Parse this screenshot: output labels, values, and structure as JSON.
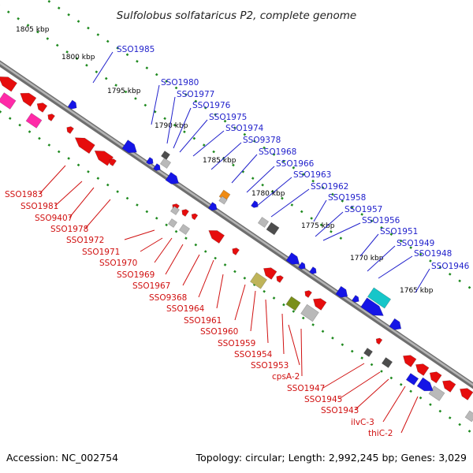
{
  "title": "Sulfolobus solfataricus P2, complete genome",
  "accession": "Accession: NC_002754",
  "topology": "Topology: circular; Length: 2,992,245 bp; Genes: 3,029",
  "colors": {
    "backbone": "#8a8a8a",
    "dots": "#1f8a1f",
    "forward_gene": "#1515e6",
    "reverse_gene": "#e60d0d",
    "forward_label": "#2222cc",
    "reverse_label": "#d01010",
    "pink_gene": "#ff2aa8",
    "cyan_gene": "#16c6c9",
    "orange_gene": "#ef8a12",
    "olive_gene": "#7a8f1a",
    "khaki_gene": "#bfb45a",
    "grey_gene": "#b9b9b9",
    "dark_gene": "#4d4d4d"
  },
  "ruler": [
    "1805 kbp",
    "1800 kbp",
    "1795 kbp",
    "1790 kbp",
    "1785 kbp",
    "1780 kbp",
    "1775 kbp",
    "1770 kbp",
    "1765 kbp"
  ],
  "forward_labels": [
    "SSO1985",
    "SSO1980",
    "SSO1977",
    "SSO1976",
    "SSO1975",
    "SSO1974",
    "SSO9378",
    "SSO1968",
    "SSO1966",
    "SSO1963",
    "SSO1962",
    "SSO1958",
    "SSO1957",
    "SSO1956",
    "SSO1951",
    "SSO1949",
    "SSO1948",
    "SSO1946"
  ],
  "reverse_labels": [
    "SSO1983",
    "SSO1981",
    "SSO9407",
    "SSO1978",
    "SSO1972",
    "SSO1971",
    "SSO1970",
    "SSO1969",
    "SSO1967",
    "SSO9368",
    "SSO1964",
    "SSO1961",
    "SSO1960",
    "SSO1959",
    "SSO1954",
    "SSO1953",
    "cpsA-2",
    "SSO1947",
    "SSO1945",
    "SSO1943",
    "ilvC-3",
    "thiC-2"
  ]
}
